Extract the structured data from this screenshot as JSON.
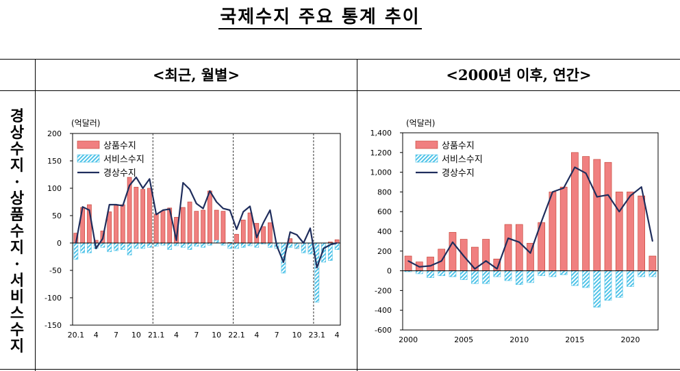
{
  "page": {
    "title": "국제수지 주요 통계 추이"
  },
  "columns": {
    "left": "<최근, 월별>",
    "right": "<2000년 이후, 연간>"
  },
  "row_label": [
    "경",
    "상",
    "수",
    "지",
    "·",
    "상",
    "품",
    "수",
    "지",
    "·",
    "서",
    "비",
    "스",
    "수",
    "지"
  ],
  "colors": {
    "goods": "#f08080",
    "goods_edge": "#c0392b",
    "services": "#4fc3e8",
    "current": "#1f2d5c"
  },
  "chart_data": [
    {
      "type": "bar",
      "unit_label": "(억달러)",
      "x_ticks": [
        "20.1",
        "4",
        "7",
        "10",
        "21.1",
        "4",
        "7",
        "10",
        "22.1",
        "4",
        "7",
        "10",
        "23.1",
        "4"
      ],
      "x_tick_index": [
        0,
        3,
        6,
        9,
        12,
        15,
        18,
        21,
        24,
        27,
        30,
        33,
        36,
        39
      ],
      "y_ticks": [
        "200",
        "150",
        "100",
        "50",
        "0",
        "-50",
        "-100",
        "-150"
      ],
      "ylim": [
        -150,
        200
      ],
      "year_dividers": [
        11.5,
        23.5,
        35.5
      ],
      "legend": [
        "상품수지",
        "서비스수지",
        "경상수지"
      ],
      "series": [
        {
          "name": "상품수지",
          "kind": "bar",
          "values": [
            18,
            65,
            70,
            5,
            22,
            57,
            68,
            70,
            120,
            102,
            98,
            100,
            53,
            58,
            64,
            47,
            65,
            75,
            58,
            60,
            95,
            60,
            58,
            1,
            16,
            42,
            55,
            36,
            30,
            37,
            -8,
            -40,
            8,
            -10,
            -8,
            -16,
            -75,
            -15,
            2,
            6
          ]
        },
        {
          "name": "서비스수지",
          "kind": "bar",
          "values": [
            -30,
            -18,
            -18,
            -10,
            -8,
            -16,
            -14,
            -12,
            -22,
            -10,
            -10,
            -8,
            -6,
            -4,
            -12,
            -5,
            -8,
            -12,
            -6,
            -8,
            -4,
            5,
            -4,
            -10,
            -10,
            -8,
            -5,
            -8,
            -2,
            -8,
            -10,
            -55,
            -8,
            -10,
            -18,
            -20,
            -108,
            -35,
            -32,
            -12
          ]
        },
        {
          "name": "경상수지",
          "kind": "line",
          "values": [
            0,
            66,
            60,
            -10,
            8,
            70,
            70,
            68,
            105,
            120,
            100,
            117,
            52,
            60,
            62,
            5,
            110,
            98,
            72,
            63,
            95,
            75,
            63,
            60,
            25,
            57,
            67,
            10,
            37,
            60,
            -5,
            -35,
            20,
            15,
            0,
            27,
            -45,
            -10,
            -3,
            0
          ]
        }
      ]
    },
    {
      "type": "bar",
      "unit_label": "(억달러)",
      "x": [
        2000,
        2001,
        2002,
        2003,
        2004,
        2005,
        2006,
        2007,
        2008,
        2009,
        2010,
        2011,
        2012,
        2013,
        2014,
        2015,
        2016,
        2017,
        2018,
        2019,
        2020,
        2021,
        2022
      ],
      "x_ticks": [
        "2000",
        "2005",
        "2010",
        "2015",
        "2020"
      ],
      "x_tick_index": [
        0,
        5,
        10,
        15,
        20
      ],
      "y_ticks": [
        "1,400",
        "1,200",
        "1,000",
        "800",
        "600",
        "400",
        "200",
        "0",
        "-200",
        "-400",
        "-600"
      ],
      "ylim": [
        -600,
        1400
      ],
      "legend": [
        "상품수지",
        "서비스수지",
        "경상수지"
      ],
      "series": [
        {
          "name": "상품수지",
          "kind": "bar",
          "values": [
            150,
            90,
            140,
            220,
            390,
            320,
            240,
            320,
            120,
            470,
            470,
            280,
            490,
            800,
            850,
            1200,
            1160,
            1130,
            1100,
            800,
            800,
            760,
            150
          ]
        },
        {
          "name": "서비스수지",
          "kind": "bar",
          "values": [
            -10,
            -30,
            -70,
            -50,
            -60,
            -90,
            -130,
            -130,
            -60,
            -100,
            -140,
            -120,
            -50,
            -60,
            -40,
            -150,
            -170,
            -370,
            -300,
            -270,
            -160,
            -60,
            -60
          ]
        },
        {
          "name": "경상수지",
          "kind": "line",
          "values": [
            100,
            40,
            50,
            100,
            290,
            150,
            20,
            100,
            20,
            330,
            290,
            180,
            500,
            800,
            840,
            1050,
            990,
            750,
            770,
            600,
            760,
            850,
            300
          ]
        }
      ]
    }
  ]
}
